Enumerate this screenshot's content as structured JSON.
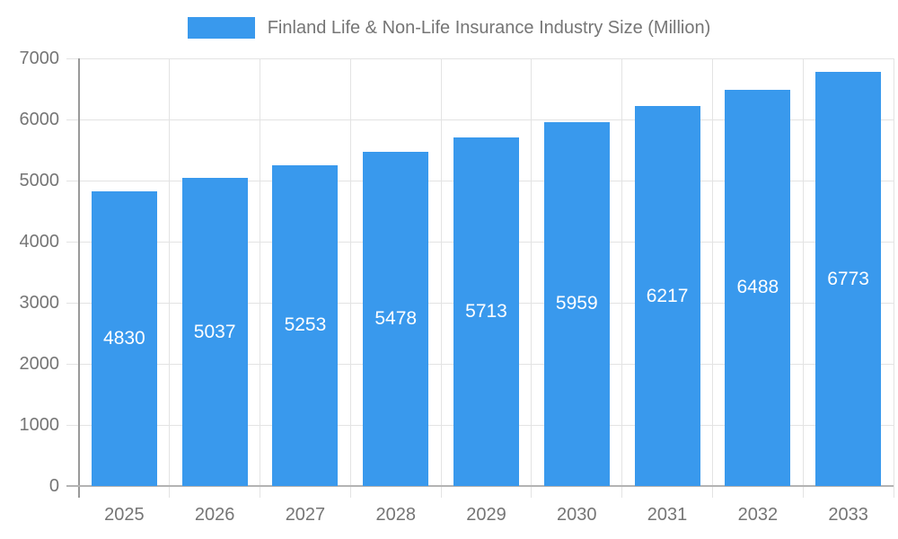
{
  "chart_data": {
    "type": "bar",
    "title": "Finland Life & Non-Life Insurance Industry Size (Million)",
    "categories": [
      "2025",
      "2026",
      "2027",
      "2028",
      "2029",
      "2030",
      "2031",
      "2032",
      "2033"
    ],
    "values": [
      4830,
      5037,
      5253,
      5478,
      5713,
      5959,
      6217,
      6488,
      6773
    ],
    "series_name": "Finland Life & Non-Life Insurance Industry Size (Million)",
    "xlabel": "",
    "ylabel": "",
    "ylim": [
      0,
      7000
    ],
    "ytick_step": 1000,
    "yticks": [
      "0",
      "1000",
      "2000",
      "3000",
      "4000",
      "5000",
      "6000",
      "7000"
    ],
    "grid": true,
    "legend_position": "top",
    "value_labels": "inside-center",
    "colors": {
      "bar": "#3999ED",
      "axis_text": "#757575",
      "grid": "#E3E3E3",
      "axis_line": "#999999",
      "baseline": "#B3B3B3",
      "value_label": "#FFFFFF",
      "background": "#FFFFFF"
    }
  }
}
